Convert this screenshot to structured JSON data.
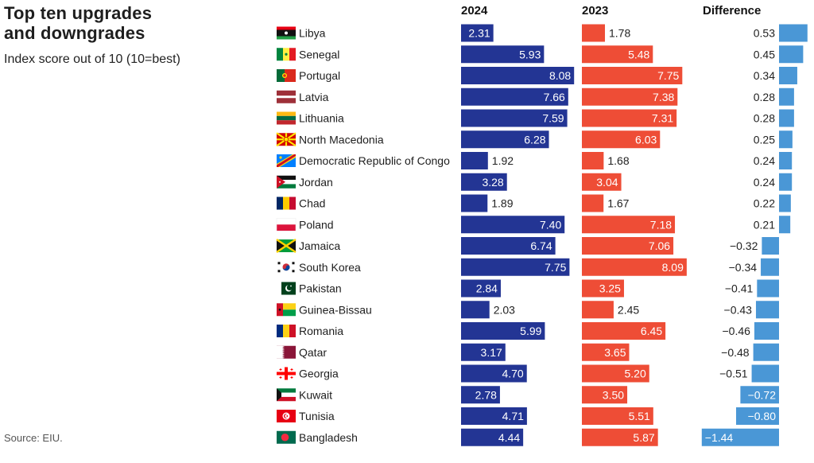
{
  "title_line1": "Top ten upgrades",
  "title_line2": "and downgrades",
  "subtitle": "Index score out of 10 (10=best)",
  "source": "Source: EIU.",
  "colors": {
    "bar_2024": "#233594",
    "bar_2023": "#ee4d36",
    "bar_difference": "#4a97d6",
    "label_inside": "#ffffff",
    "label_outside": "#222222"
  },
  "chart_data": {
    "type": "bar",
    "title": "Top ten upgrades and downgrades",
    "subtitle": "Index score out of 10 (10=best)",
    "column_headers": [
      "2024",
      "2023",
      "Difference"
    ],
    "categories": [
      "Libya",
      "Senegal",
      "Portugal",
      "Latvia",
      "Lithuania",
      "North Macedonia",
      "Democratic Republic of Congo",
      "Jordan",
      "Chad",
      "Poland",
      "Jamaica",
      "South Korea",
      "Pakistan",
      "Guinea-Bissau",
      "Romania",
      "Qatar",
      "Georgia",
      "Kuwait",
      "Tunisia",
      "Bangladesh"
    ],
    "flag_icons": [
      "libya-flag-icon",
      "senegal-flag-icon",
      "portugal-flag-icon",
      "latvia-flag-icon",
      "lithuania-flag-icon",
      "north-macedonia-flag-icon",
      "dr-congo-flag-icon",
      "jordan-flag-icon",
      "chad-flag-icon",
      "poland-flag-icon",
      "jamaica-flag-icon",
      "south-korea-flag-icon",
      "pakistan-flag-icon",
      "guinea-bissau-flag-icon",
      "romania-flag-icon",
      "qatar-flag-icon",
      "georgia-flag-icon",
      "kuwait-flag-icon",
      "tunisia-flag-icon",
      "bangladesh-flag-icon"
    ],
    "series": [
      {
        "name": "2024",
        "values": [
          2.31,
          5.93,
          8.08,
          7.66,
          7.59,
          6.28,
          1.92,
          3.28,
          1.89,
          7.4,
          6.74,
          7.75,
          2.84,
          2.03,
          5.99,
          3.17,
          4.7,
          2.78,
          4.71,
          4.44
        ],
        "labels": [
          "2.31",
          "5.93",
          "8.08",
          "7.66",
          "7.59",
          "6.28",
          "1.92",
          "3.28",
          "1.89",
          "7.40",
          "6.74",
          "7.75",
          "2.84",
          "2.03",
          "5.99",
          "3.17",
          "4.70",
          "2.78",
          "4.71",
          "4.44"
        ]
      },
      {
        "name": "2023",
        "values": [
          1.78,
          5.48,
          7.75,
          7.38,
          7.31,
          6.03,
          1.68,
          3.04,
          1.67,
          7.18,
          7.06,
          8.09,
          3.25,
          2.45,
          6.45,
          3.65,
          5.2,
          3.5,
          5.51,
          5.87
        ],
        "labels": [
          "1.78",
          "5.48",
          "7.75",
          "7.38",
          "7.31",
          "6.03",
          "1.68",
          "3.04",
          "1.67",
          "7.18",
          "7.06",
          "8.09",
          "3.25",
          "2.45",
          "6.45",
          "3.65",
          "5.20",
          "3.50",
          "5.51",
          "5.87"
        ]
      },
      {
        "name": "Difference",
        "values": [
          0.53,
          0.45,
          0.34,
          0.28,
          0.28,
          0.25,
          0.24,
          0.24,
          0.22,
          0.21,
          -0.32,
          -0.34,
          -0.41,
          -0.43,
          -0.46,
          -0.48,
          -0.51,
          -0.72,
          -0.8,
          -1.44
        ],
        "labels": [
          "0.53",
          "0.45",
          "0.34",
          "0.28",
          "0.28",
          "0.25",
          "0.24",
          "0.24",
          "0.22",
          "0.21",
          "−0.32",
          "−0.34",
          "−0.41",
          "−0.43",
          "−0.46",
          "−0.48",
          "−0.51",
          "−0.72",
          "−0.80",
          "−1.44"
        ]
      }
    ],
    "xlabel": "",
    "ylabel": "",
    "grid": false,
    "legend": "none"
  }
}
